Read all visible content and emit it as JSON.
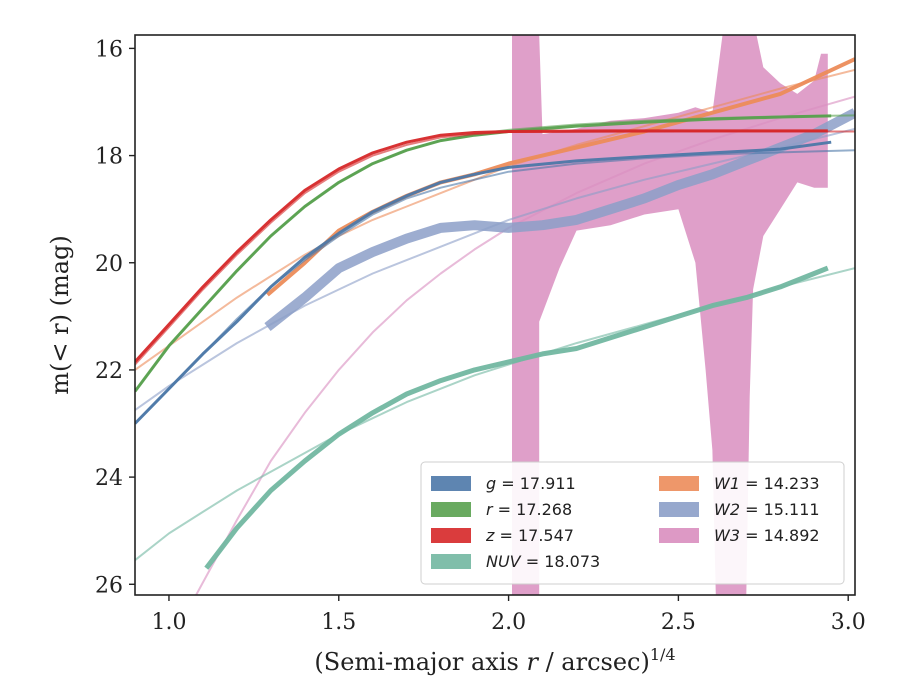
{
  "chart_data": {
    "type": "line",
    "title": "",
    "xlabel": "(Semi-major axis r / arcsec)^{1/4}",
    "xlabel_main": "(Semi-major axis ",
    "xlabel_var": "r",
    "xlabel_unit": " / arcsec)",
    "xlabel_sup": "1/4",
    "ylabel": "m(< r) (mag)",
    "xlim": [
      0.9,
      3.02
    ],
    "ylim": [
      26.2,
      15.75
    ],
    "y_inverted": true,
    "grid": false,
    "legend_position": "lower-right",
    "x_ticks": [
      {
        "value": 1.0,
        "label": "1.0"
      },
      {
        "value": 1.5,
        "label": "1.5"
      },
      {
        "value": 2.0,
        "label": "2.0"
      },
      {
        "value": 2.5,
        "label": "2.5"
      },
      {
        "value": 3.0,
        "label": "3.0"
      }
    ],
    "y_ticks": [
      {
        "value": 16,
        "label": "16"
      },
      {
        "value": 18,
        "label": "18"
      },
      {
        "value": 20,
        "label": "20"
      },
      {
        "value": 22,
        "label": "22"
      },
      {
        "value": 24,
        "label": "24"
      },
      {
        "value": 26,
        "label": "26"
      }
    ],
    "series": [
      {
        "name": "g = 17.911",
        "band": "g",
        "mag": "17.911",
        "color": "#4c78a8",
        "data": [
          [
            0.9,
            23.0
          ],
          [
            1.0,
            22.35
          ],
          [
            1.1,
            21.7
          ],
          [
            1.2,
            21.1
          ],
          [
            1.3,
            20.45
          ],
          [
            1.4,
            19.9
          ],
          [
            1.5,
            19.45
          ],
          [
            1.6,
            19.05
          ],
          [
            1.7,
            18.75
          ],
          [
            1.8,
            18.5
          ],
          [
            1.9,
            18.35
          ],
          [
            2.0,
            18.22
          ],
          [
            2.2,
            18.1
          ],
          [
            2.4,
            18.02
          ],
          [
            2.6,
            17.95
          ],
          [
            2.8,
            17.88
          ],
          [
            2.95,
            17.75
          ]
        ],
        "model": [
          [
            0.9,
            23.0
          ],
          [
            1.0,
            22.35
          ],
          [
            1.1,
            21.7
          ],
          [
            1.2,
            21.05
          ],
          [
            1.3,
            20.45
          ],
          [
            1.4,
            19.95
          ],
          [
            1.5,
            19.5
          ],
          [
            1.6,
            19.1
          ],
          [
            1.7,
            18.8
          ],
          [
            1.8,
            18.6
          ],
          [
            1.9,
            18.45
          ],
          [
            2.0,
            18.3
          ],
          [
            2.2,
            18.15
          ],
          [
            2.4,
            18.05
          ],
          [
            2.6,
            17.98
          ],
          [
            2.8,
            17.94
          ],
          [
            3.02,
            17.9
          ]
        ]
      },
      {
        "name": "r = 17.268",
        "band": "r",
        "mag": "17.268",
        "color": "#59a14f",
        "data": [
          [
            0.9,
            22.4
          ],
          [
            1.0,
            21.55
          ],
          [
            1.1,
            20.85
          ],
          [
            1.2,
            20.15
          ],
          [
            1.3,
            19.5
          ],
          [
            1.4,
            18.95
          ],
          [
            1.5,
            18.5
          ],
          [
            1.6,
            18.15
          ],
          [
            1.7,
            17.9
          ],
          [
            1.8,
            17.72
          ],
          [
            1.9,
            17.62
          ],
          [
            2.0,
            17.55
          ],
          [
            2.2,
            17.45
          ],
          [
            2.4,
            17.38
          ],
          [
            2.6,
            17.32
          ],
          [
            2.8,
            17.28
          ],
          [
            2.95,
            17.26
          ]
        ],
        "model": [
          [
            0.9,
            22.4
          ],
          [
            1.0,
            21.55
          ],
          [
            1.1,
            20.85
          ],
          [
            1.2,
            20.15
          ],
          [
            1.3,
            19.5
          ],
          [
            1.4,
            18.95
          ],
          [
            1.5,
            18.5
          ],
          [
            1.6,
            18.15
          ],
          [
            1.7,
            17.9
          ],
          [
            1.8,
            17.72
          ],
          [
            1.9,
            17.6
          ],
          [
            2.0,
            17.52
          ],
          [
            2.2,
            17.42
          ],
          [
            2.4,
            17.35
          ],
          [
            2.6,
            17.3
          ],
          [
            2.8,
            17.27
          ],
          [
            3.02,
            17.25
          ]
        ]
      },
      {
        "name": "z = 17.547",
        "band": "z",
        "mag": "17.547",
        "color": "#d62728",
        "data": [
          [
            0.9,
            21.85
          ],
          [
            1.0,
            21.15
          ],
          [
            1.1,
            20.45
          ],
          [
            1.2,
            19.8
          ],
          [
            1.3,
            19.2
          ],
          [
            1.4,
            18.65
          ],
          [
            1.5,
            18.25
          ],
          [
            1.6,
            17.95
          ],
          [
            1.7,
            17.75
          ],
          [
            1.8,
            17.62
          ],
          [
            1.9,
            17.57
          ],
          [
            2.0,
            17.55
          ],
          [
            2.3,
            17.54
          ],
          [
            2.6,
            17.54
          ],
          [
            2.94,
            17.54
          ]
        ],
        "model": [
          [
            0.9,
            21.9
          ],
          [
            1.0,
            21.2
          ],
          [
            1.1,
            20.5
          ],
          [
            1.2,
            19.85
          ],
          [
            1.3,
            19.25
          ],
          [
            1.4,
            18.7
          ],
          [
            1.5,
            18.3
          ],
          [
            1.6,
            18.0
          ],
          [
            1.7,
            17.8
          ],
          [
            1.8,
            17.66
          ],
          [
            1.9,
            17.6
          ],
          [
            2.0,
            17.56
          ],
          [
            2.5,
            17.55
          ],
          [
            3.02,
            17.55
          ]
        ]
      },
      {
        "name": "NUV = 18.073",
        "band": "NUV",
        "mag": "18.073",
        "color": "#72b7a1",
        "data": [
          [
            1.11,
            25.7
          ],
          [
            1.2,
            24.95
          ],
          [
            1.3,
            24.25
          ],
          [
            1.4,
            23.7
          ],
          [
            1.5,
            23.2
          ],
          [
            1.6,
            22.8
          ],
          [
            1.7,
            22.45
          ],
          [
            1.8,
            22.2
          ],
          [
            1.9,
            22.0
          ],
          [
            2.0,
            21.85
          ],
          [
            2.1,
            21.7
          ],
          [
            2.2,
            21.6
          ],
          [
            2.3,
            21.4
          ],
          [
            2.4,
            21.2
          ],
          [
            2.5,
            21.0
          ],
          [
            2.6,
            20.8
          ],
          [
            2.7,
            20.65
          ],
          [
            2.8,
            20.45
          ],
          [
            2.9,
            20.2
          ],
          [
            2.94,
            20.1
          ]
        ],
        "model": [
          [
            0.9,
            25.55
          ],
          [
            1.0,
            25.05
          ],
          [
            1.1,
            24.65
          ],
          [
            1.2,
            24.25
          ],
          [
            1.3,
            23.9
          ],
          [
            1.4,
            23.55
          ],
          [
            1.5,
            23.2
          ],
          [
            1.6,
            22.9
          ],
          [
            1.7,
            22.6
          ],
          [
            1.8,
            22.35
          ],
          [
            1.9,
            22.1
          ],
          [
            2.0,
            21.9
          ],
          [
            2.2,
            21.5
          ],
          [
            2.4,
            21.15
          ],
          [
            2.6,
            20.8
          ],
          [
            2.8,
            20.45
          ],
          [
            3.02,
            20.1
          ]
        ]
      },
      {
        "name": "W1 = 14.233",
        "band": "W1",
        "mag": "14.233",
        "color": "#ec8c5a",
        "data": [
          [
            1.29,
            20.6
          ],
          [
            1.4,
            20.0
          ],
          [
            1.5,
            19.4
          ],
          [
            1.6,
            19.05
          ],
          [
            1.7,
            18.75
          ],
          [
            1.8,
            18.5
          ],
          [
            1.9,
            18.35
          ],
          [
            2.0,
            18.15
          ],
          [
            2.2,
            17.85
          ],
          [
            2.4,
            17.55
          ],
          [
            2.6,
            17.2
          ],
          [
            2.8,
            16.85
          ],
          [
            3.02,
            16.2
          ]
        ],
        "model": [
          [
            0.9,
            22.0
          ],
          [
            1.0,
            21.55
          ],
          [
            1.1,
            21.1
          ],
          [
            1.2,
            20.65
          ],
          [
            1.3,
            20.25
          ],
          [
            1.4,
            19.85
          ],
          [
            1.5,
            19.5
          ],
          [
            1.6,
            19.2
          ],
          [
            1.7,
            18.95
          ],
          [
            1.8,
            18.7
          ],
          [
            1.9,
            18.45
          ],
          [
            2.0,
            18.2
          ],
          [
            2.2,
            17.8
          ],
          [
            2.4,
            17.45
          ],
          [
            2.6,
            17.1
          ],
          [
            2.8,
            16.75
          ],
          [
            3.02,
            16.4
          ]
        ]
      },
      {
        "name": "W2 = 15.111",
        "band": "W2",
        "mag": "15.111",
        "color": "#8c9fc8",
        "data": [
          [
            1.29,
            21.2
          ],
          [
            1.4,
            20.65
          ],
          [
            1.5,
            20.1
          ],
          [
            1.6,
            19.8
          ],
          [
            1.7,
            19.55
          ],
          [
            1.8,
            19.35
          ],
          [
            1.9,
            19.3
          ],
          [
            2.0,
            19.35
          ],
          [
            2.1,
            19.3
          ],
          [
            2.2,
            19.2
          ],
          [
            2.3,
            19.0
          ],
          [
            2.4,
            18.8
          ],
          [
            2.5,
            18.55
          ],
          [
            2.6,
            18.35
          ],
          [
            2.7,
            18.1
          ],
          [
            2.8,
            17.85
          ],
          [
            2.9,
            17.6
          ],
          [
            3.02,
            17.2
          ]
        ],
        "model": [
          [
            0.9,
            22.75
          ],
          [
            1.0,
            22.3
          ],
          [
            1.1,
            21.9
          ],
          [
            1.2,
            21.5
          ],
          [
            1.3,
            21.15
          ],
          [
            1.4,
            20.8
          ],
          [
            1.5,
            20.5
          ],
          [
            1.6,
            20.2
          ],
          [
            1.7,
            19.95
          ],
          [
            1.8,
            19.7
          ],
          [
            1.9,
            19.45
          ],
          [
            2.0,
            19.2
          ],
          [
            2.2,
            18.8
          ],
          [
            2.4,
            18.45
          ],
          [
            2.6,
            18.15
          ],
          [
            2.8,
            17.85
          ],
          [
            3.02,
            17.5
          ]
        ]
      },
      {
        "name": "W3 = 14.892",
        "band": "W3",
        "mag": "14.892",
        "color": "#d98ebf",
        "model": [
          [
            1.08,
            26.2
          ],
          [
            1.2,
            24.8
          ],
          [
            1.3,
            23.7
          ],
          [
            1.4,
            22.8
          ],
          [
            1.5,
            22.0
          ],
          [
            1.6,
            21.3
          ],
          [
            1.7,
            20.7
          ],
          [
            1.8,
            20.2
          ],
          [
            1.9,
            19.75
          ],
          [
            2.0,
            19.35
          ],
          [
            2.2,
            18.7
          ],
          [
            2.4,
            18.15
          ],
          [
            2.6,
            17.7
          ],
          [
            2.8,
            17.3
          ],
          [
            3.02,
            16.9
          ]
        ],
        "band_upper": [
          [
            2.01,
            15.75
          ],
          [
            2.09,
            15.75
          ],
          [
            2.1,
            17.6
          ],
          [
            2.2,
            17.5
          ],
          [
            2.3,
            17.35
          ],
          [
            2.4,
            17.3
          ],
          [
            2.5,
            17.2
          ],
          [
            2.55,
            17.1
          ],
          [
            2.6,
            17.2
          ],
          [
            2.63,
            15.75
          ],
          [
            2.73,
            15.75
          ],
          [
            2.75,
            16.35
          ],
          [
            2.8,
            16.65
          ],
          [
            2.85,
            16.85
          ],
          [
            2.9,
            16.6
          ],
          [
            2.92,
            16.1
          ],
          [
            2.94,
            16.1
          ]
        ],
        "band_lower": [
          [
            2.01,
            26.2
          ],
          [
            2.09,
            26.2
          ],
          [
            2.09,
            21.1
          ],
          [
            2.15,
            20.1
          ],
          [
            2.2,
            19.4
          ],
          [
            2.3,
            19.3
          ],
          [
            2.4,
            19.1
          ],
          [
            2.5,
            19.0
          ],
          [
            2.55,
            20.0
          ],
          [
            2.58,
            22.0
          ],
          [
            2.6,
            23.5
          ],
          [
            2.61,
            26.2
          ],
          [
            2.7,
            26.2
          ],
          [
            2.71,
            22.5
          ],
          [
            2.72,
            20.5
          ],
          [
            2.75,
            19.5
          ],
          [
            2.8,
            19.0
          ],
          [
            2.85,
            18.5
          ],
          [
            2.9,
            18.6
          ],
          [
            2.94,
            18.6
          ]
        ]
      }
    ]
  }
}
